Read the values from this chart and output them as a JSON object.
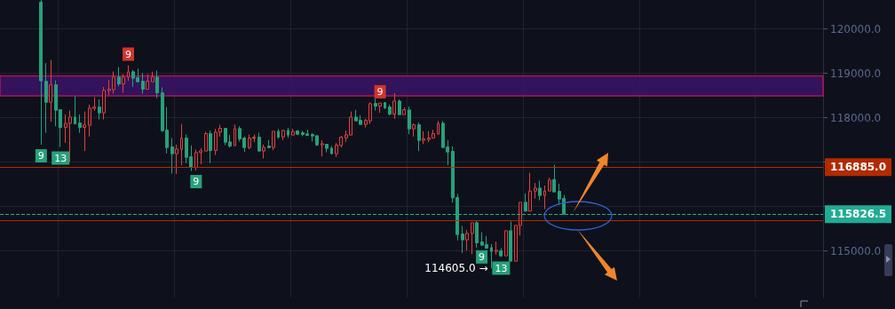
{
  "chart_data": {
    "type": "candlestick",
    "categories": [
      null,
      null,
      null,
      null,
      null,
      null,
      null,
      null,
      null,
      null,
      null,
      null,
      null,
      null,
      null,
      null,
      null,
      null,
      null,
      null,
      null,
      null,
      null,
      null,
      null,
      null,
      null,
      null,
      null,
      null,
      null,
      null,
      null,
      null,
      null,
      null,
      null,
      null,
      null,
      null,
      null,
      null,
      null,
      null,
      null,
      null,
      null,
      null,
      null,
      null,
      null,
      null,
      null,
      null,
      null,
      null,
      null,
      null,
      null,
      null,
      null,
      null,
      null,
      null,
      null,
      null,
      null,
      null,
      null,
      null,
      null,
      null,
      null,
      null,
      null,
      null,
      null,
      null,
      null,
      null,
      null,
      null,
      null,
      null,
      null,
      null,
      null,
      null,
      null,
      null,
      null,
      null,
      null,
      null,
      null,
      null,
      null,
      null,
      null,
      null,
      null,
      null,
      null,
      null,
      null,
      null,
      null,
      null,
      null,
      null,
      null,
      null,
      null,
      null,
      null,
      null,
      null,
      null,
      null,
      null,
      null,
      null,
      null,
      null,
      null,
      null,
      null,
      null,
      null,
      null,
      null,
      null,
      null,
      null,
      null,
      null,
      null,
      null,
      null,
      null,
      null,
      null,
      null,
      null,
      null,
      null,
      null,
      null,
      null,
      null,
      null,
      null,
      null,
      null,
      null,
      null,
      null,
      null,
      null,
      null,
      null,
      null,
      null,
      null,
      null,
      null,
      null,
      null,
      null,
      null
    ],
    "ohlc": [
      null,
      null,
      null,
      null,
      null,
      null,
      null,
      null,
      [
        120600,
        120650,
        117390,
        118830
      ],
      [
        118820,
        119227,
        117660,
        118347
      ],
      [
        118347,
        119300,
        117907,
        118740
      ],
      [
        118740,
        118840,
        117807,
        118167
      ],
      [
        118180,
        118180,
        117340,
        117780
      ],
      [
        117780,
        118073,
        117433,
        117873
      ],
      [
        117873,
        118160,
        117007,
        118013
      ],
      [
        118013,
        118480,
        117847,
        117860
      ],
      [
        117880,
        118073,
        117660,
        117780
      ],
      [
        117780,
        118140,
        117247,
        117833
      ],
      [
        117827,
        118293,
        117573,
        118213
      ],
      [
        118207,
        118460,
        118153,
        118240
      ],
      [
        118240,
        118413,
        117960,
        118107
      ],
      [
        118107,
        118693,
        117960,
        118613
      ],
      [
        118607,
        118847,
        118513,
        118640
      ],
      [
        118633,
        119040,
        118540,
        118913
      ],
      [
        118913,
        119140,
        118707,
        118760
      ],
      [
        118760,
        118980,
        118560,
        118913
      ],
      [
        118913,
        119180,
        118827,
        119033
      ],
      [
        119033,
        119073,
        118693,
        118887
      ],
      [
        118900,
        119107,
        118800,
        118807
      ],
      [
        118820,
        119000,
        118540,
        118640
      ],
      [
        118640,
        118980,
        118640,
        118820
      ],
      [
        118807,
        119040,
        118807,
        118913
      ],
      [
        118913,
        119060,
        118440,
        118560
      ],
      [
        118560,
        118680,
        117680,
        117707
      ],
      [
        117720,
        118240,
        117193,
        117327
      ],
      [
        117340,
        117540,
        116740,
        117187
      ],
      [
        117187,
        117393,
        116727,
        117293
      ],
      [
        117287,
        117860,
        116927,
        117540
      ],
      [
        117540,
        117620,
        116973,
        117107
      ],
      [
        117120,
        117373,
        116800,
        116880
      ],
      [
        116880,
        117280,
        116810,
        117213
      ],
      [
        117213,
        117313,
        116947,
        117253
      ],
      [
        117247,
        117680,
        117247,
        117640
      ],
      [
        117640,
        117707,
        116973,
        117260
      ],
      [
        117260,
        117747,
        117160,
        117673
      ],
      [
        117673,
        117840,
        117573,
        117760
      ],
      [
        117760,
        117760,
        117380,
        117447
      ],
      [
        117453,
        117613,
        117327,
        117360
      ],
      [
        117367,
        117847,
        117367,
        117753
      ],
      [
        117753,
        117807,
        117460,
        117520
      ],
      [
        117540,
        117580,
        117227,
        117327
      ],
      [
        117327,
        117620,
        117287,
        117540
      ],
      [
        117540,
        117620,
        117447,
        117560
      ],
      [
        117560,
        117660,
        117247,
        117247
      ],
      [
        117247,
        117393,
        117080,
        117333
      ],
      [
        117360,
        117493,
        117307,
        117327
      ],
      [
        117327,
        117693,
        117267,
        117693
      ],
      [
        117693,
        117747,
        117527,
        117560
      ],
      [
        117567,
        117727,
        117493,
        117713
      ],
      [
        117713,
        117773,
        117547,
        117607
      ],
      [
        117607,
        117747,
        117607,
        117687
      ],
      [
        117700,
        117720,
        117607,
        117627
      ],
      [
        117660,
        117707,
        117580,
        117620
      ],
      [
        117633,
        117727,
        117600,
        117600
      ],
      [
        117620,
        117653,
        117460,
        117587
      ],
      [
        117593,
        117593,
        117360,
        117387
      ],
      [
        117387,
        117493,
        117127,
        117413
      ],
      [
        117400,
        117407,
        117220,
        117307
      ],
      [
        117313,
        117360,
        117180,
        117187
      ],
      [
        117187,
        117433,
        117113,
        117380
      ],
      [
        117373,
        117587,
        117327,
        117560
      ],
      [
        117547,
        117713,
        117453,
        117613
      ],
      [
        117607,
        118140,
        117607,
        118013
      ],
      [
        118013,
        118173,
        117927,
        117927
      ],
      [
        117940,
        118060,
        117847,
        117847
      ],
      [
        117847,
        117973,
        117780,
        117940
      ],
      [
        117927,
        118347,
        117860,
        118313
      ],
      [
        118320,
        118427,
        118160,
        118260
      ],
      [
        118260,
        118333,
        118107,
        118330
      ],
      [
        118340,
        118340,
        118193,
        118220
      ],
      [
        118240,
        118293,
        118053,
        118080
      ],
      [
        118080,
        118553,
        117973,
        118373
      ],
      [
        118373,
        118413,
        118067,
        118067
      ],
      [
        118067,
        118227,
        118067,
        118180
      ],
      [
        118173,
        118247,
        117627,
        117747
      ],
      [
        117747,
        117867,
        117573,
        117840
      ],
      [
        117840,
        117893,
        117247,
        117487
      ],
      [
        117487,
        117693,
        117407,
        117520
      ],
      [
        117507,
        117693,
        117447,
        117540
      ],
      [
        117540,
        117727,
        117540,
        117640
      ],
      [
        117627,
        117927,
        117627,
        117867
      ],
      [
        117873,
        117927,
        117327,
        117327
      ],
      [
        117340,
        117493,
        116927,
        117227
      ],
      [
        117240,
        117353,
        116087,
        116193
      ],
      [
        116200,
        116280,
        115233,
        115367
      ],
      [
        115380,
        115560,
        114953,
        115247
      ],
      [
        115247,
        115473,
        115007,
        115393
      ],
      [
        115393,
        115633,
        114927,
        115633
      ],
      [
        115633,
        115673,
        115073,
        115180
      ],
      [
        115200,
        115420,
        115113,
        115127
      ],
      [
        115140,
        115333,
        115047,
        115060
      ],
      [
        115073,
        115153,
        114605,
        114987
      ],
      [
        114987,
        115207,
        114913,
        115013
      ],
      [
        115000,
        115060,
        114860,
        114887
      ],
      [
        114887,
        115453,
        114887,
        115453
      ],
      [
        115453,
        115660,
        114767,
        114767
      ],
      [
        114767,
        115573,
        114767,
        115573
      ],
      [
        115573,
        116093,
        115347,
        116093
      ],
      [
        116093,
        116293,
        115893,
        115893
      ],
      [
        115893,
        116760,
        115893,
        116347
      ],
      [
        116347,
        116527,
        116180,
        116413
      ],
      [
        116413,
        116580,
        116140,
        116247
      ],
      [
        116247,
        116473,
        115940,
        116347
      ],
      [
        116347,
        116647,
        116347,
        116593
      ],
      [
        116607,
        116940,
        116327,
        116327
      ],
      [
        116340,
        116513,
        116033,
        116167
      ],
      [
        116180,
        116260,
        115826.5,
        115826.5
      ],
      null,
      null,
      null,
      null,
      null,
      null,
      null,
      null,
      null,
      null,
      null,
      null,
      null,
      null,
      null,
      null,
      null,
      null,
      null,
      null,
      null,
      null,
      null,
      null,
      null,
      null,
      null,
      null,
      null,
      null,
      null,
      null,
      null,
      null,
      null,
      null,
      null,
      null,
      null,
      null,
      null,
      null,
      null,
      null,
      null,
      null,
      null,
      null,
      null,
      null,
      null,
      null,
      null
    ],
    "ylim": [
      113950,
      120650
    ],
    "yticks": [
      {
        "value": 115000,
        "label": "115000.0"
      },
      {
        "value": 116000,
        "label": null
      },
      {
        "value": 117000,
        "label": null
      },
      {
        "value": 118000,
        "label": "118000.0"
      },
      {
        "value": 119000,
        "label": "119000.0"
      },
      {
        "value": 120000,
        "label": "120000.0"
      }
    ],
    "grid": true,
    "tick_labels": "y",
    "ref_lines": [
      {
        "axis": "y",
        "value": 116885,
        "label": "116885.0",
        "color": "#b22a00",
        "line_style": "solid"
      },
      {
        "axis": "y",
        "value": 115680,
        "color": "#b22a00",
        "line_style": "solid"
      },
      {
        "axis": "y",
        "value": 115826.5,
        "label": "115826.5",
        "color": "#22ab94",
        "line_style": "dashed"
      }
    ],
    "bands": [
      {
        "axis": "y",
        "from": 118490,
        "to": 118940,
        "color": "#3a1466"
      }
    ],
    "annotations": [
      {
        "text": "9",
        "y": 117390
      },
      {
        "text": "13",
        "y": 117340
      },
      {
        "text": "9",
        "y": 119180
      },
      {
        "text": "9",
        "y": 116810
      },
      {
        "text": "9",
        "y": 118333
      },
      {
        "text": "9",
        "y": 115113
      },
      {
        "text": "13",
        "y": 114860
      },
      "114605.0 →"
    ]
  }
}
